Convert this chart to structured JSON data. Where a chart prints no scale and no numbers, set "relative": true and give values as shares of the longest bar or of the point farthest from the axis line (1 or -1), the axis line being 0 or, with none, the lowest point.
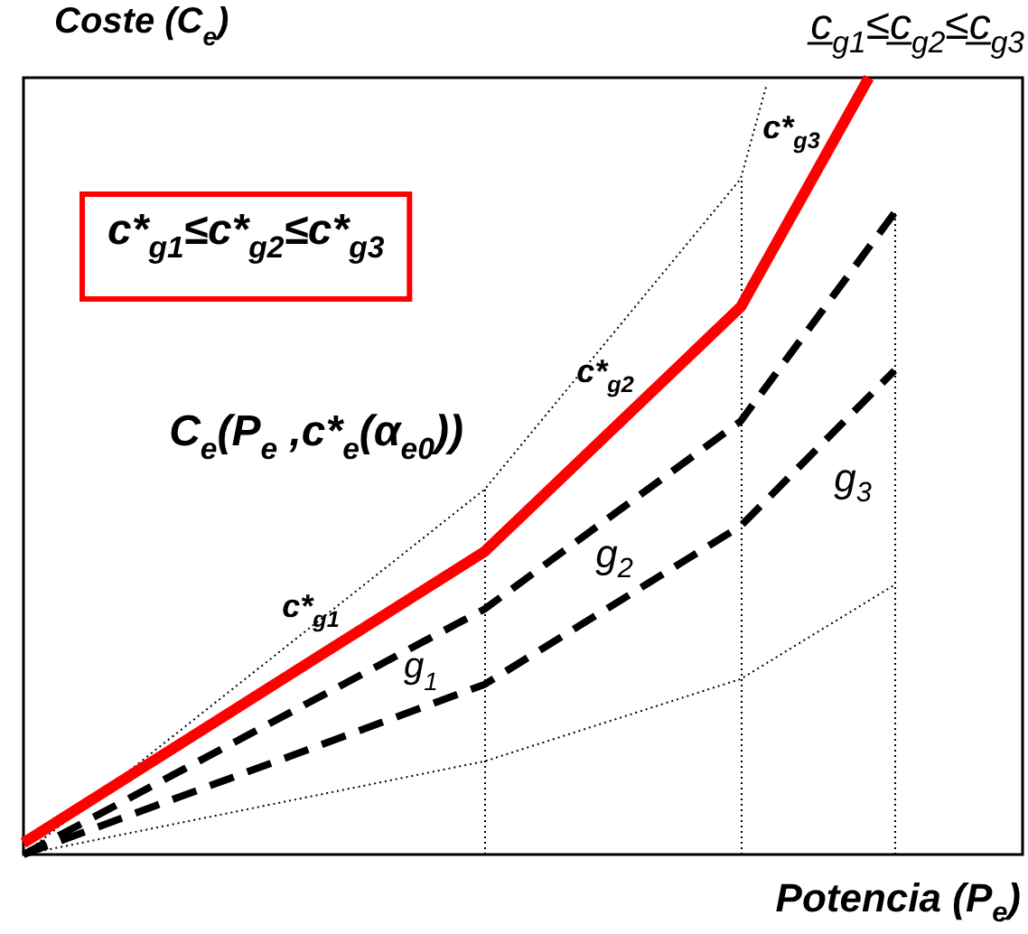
{
  "chart_data": {
    "type": "line",
    "relative": true,
    "title": "c̲$_{g1}$≤c̲$_{g2}$≤c̲$_{g3}$",
    "xlabel": "Potencia (P$_{e}$)",
    "ylabel": "Coste (C$_{e}$)",
    "categories": [
      null,
      null,
      null,
      null,
      null,
      null,
      null,
      null,
      null,
      null,
      null,
      null,
      null,
      null,
      null,
      null,
      null,
      null,
      null,
      null,
      null,
      null,
      null,
      null,
      null,
      null,
      null,
      null,
      null,
      null,
      null,
      null,
      null,
      null,
      null,
      null,
      null,
      null,
      null,
      null
    ],
    "series": [
      {
        "color": "#000000",
        "line_style": "dotted",
        "values": [
          0,
          null,
          null,
          null,
          null,
          null,
          null,
          null,
          null,
          null,
          null,
          null,
          null,
          null,
          null,
          null,
          null,
          null,
          0.47,
          null,
          null,
          null,
          null,
          null,
          null,
          null,
          null,
          null,
          0.87,
          0.99,
          null,
          null,
          null,
          null,
          null,
          null,
          null,
          null,
          null,
          null
        ]
      },
      {
        "color": "#000000",
        "line_style": "dotted",
        "values": [
          0,
          null,
          null,
          null,
          null,
          null,
          null,
          null,
          null,
          null,
          null,
          null,
          null,
          null,
          null,
          null,
          null,
          null,
          0.12,
          null,
          null,
          null,
          null,
          null,
          null,
          null,
          null,
          null,
          0.226,
          null,
          null,
          null,
          null,
          null,
          0.347,
          null,
          null,
          null,
          null,
          null
        ]
      },
      {
        "color": "#000000",
        "line_style": "dashed",
        "values": [
          0,
          null,
          null,
          null,
          null,
          null,
          null,
          null,
          null,
          null,
          null,
          null,
          null,
          null,
          null,
          null,
          null,
          null,
          0.316,
          null,
          null,
          null,
          null,
          null,
          null,
          null,
          null,
          null,
          0.558,
          null,
          null,
          null,
          null,
          null,
          0.826,
          null,
          null,
          null,
          null,
          null
        ]
      },
      {
        "color": "#000000",
        "line_style": "dashed",
        "values": [
          0,
          null,
          null,
          null,
          null,
          null,
          null,
          null,
          null,
          null,
          null,
          null,
          null,
          null,
          null,
          null,
          null,
          null,
          0.219,
          null,
          null,
          null,
          null,
          null,
          null,
          null,
          null,
          null,
          0.423,
          null,
          null,
          null,
          null,
          null,
          0.623,
          null,
          null,
          null,
          null,
          null
        ]
      },
      {
        "color": "#ff0000",
        "line_style": "solid",
        "values": [
          0.015,
          null,
          null,
          null,
          null,
          null,
          null,
          null,
          null,
          null,
          null,
          null,
          null,
          null,
          null,
          null,
          null,
          null,
          0.39,
          null,
          null,
          null,
          null,
          null,
          null,
          null,
          null,
          null,
          0.705,
          null,
          null,
          null,
          null,
          1.0,
          null,
          null,
          null,
          null,
          null,
          null
        ]
      }
    ],
    "annotations": [
      "c*$_{g1}$≤c*$_{g2}$≤c*$_{g3}$",
      "C$_{e}$(P$_{e}$ ,c*$_{e}$(α$_{e0}$))",
      "c*$_{g3}$",
      "c*$_{g2}$",
      "c*$_{g1}$",
      "g$_{1}$",
      "g$_{2}$",
      "g$_{3}$"
    ],
    "grid": false,
    "marker": "none"
  }
}
